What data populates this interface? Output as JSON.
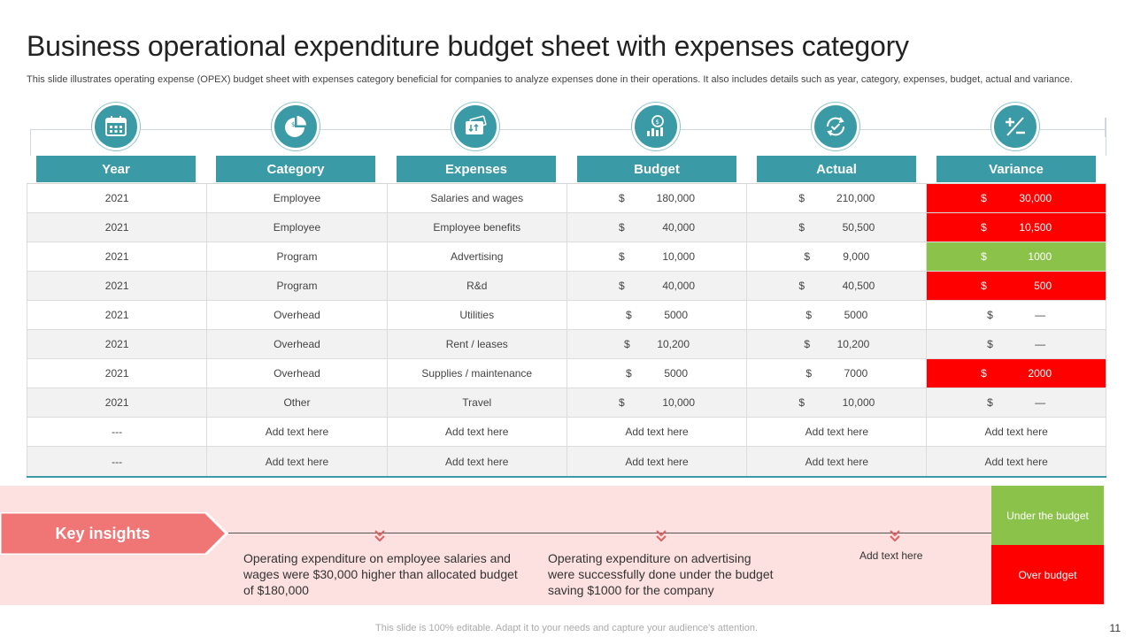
{
  "title": "Business operational expenditure budget sheet with expenses category",
  "subtitle": "This slide illustrates operating expense (OPEX) budget sheet with expenses category beneficial for companies to analyze expenses done in their operations. It also includes details such as year, category, expenses, budget, actual and variance.",
  "colors": {
    "teal": "#3a9aa5",
    "over_budget": "#ff0000",
    "under_budget": "#8bc34a",
    "insight_band": "#fde0e0",
    "key_insights": "#f07575"
  },
  "columns": [
    {
      "label": "Year",
      "icon": "calendar-icon"
    },
    {
      "label": "Category",
      "icon": "pie-chart-icon"
    },
    {
      "label": "Expenses",
      "icon": "money-transfer-icon"
    },
    {
      "label": "Budget",
      "icon": "budget-growth-icon"
    },
    {
      "label": "Actual",
      "icon": "cycle-check-icon"
    },
    {
      "label": "Variance",
      "icon": "plus-minus-icon"
    }
  ],
  "rows": [
    {
      "year": "2021",
      "category": "Employee",
      "expense": "Salaries and wages",
      "budget_cur": "$",
      "budget": "180,000",
      "actual_cur": "$",
      "actual": "210,000",
      "var_cur": "$",
      "variance": "30,000",
      "status": "over"
    },
    {
      "year": "2021",
      "category": "Employee",
      "expense": "Employee benefits",
      "budget_cur": "$",
      "budget": "40,000",
      "actual_cur": "$",
      "actual": "50,500",
      "var_cur": "$",
      "variance": "10,500",
      "status": "over"
    },
    {
      "year": "2021",
      "category": "Program",
      "expense": "Advertising",
      "budget_cur": "$",
      "budget": "10,000",
      "actual_cur": "$",
      "actual": "9,000",
      "var_cur": "$",
      "variance": "1000",
      "status": "under"
    },
    {
      "year": "2021",
      "category": "Program",
      "expense": "R&d",
      "budget_cur": "$",
      "budget": "40,000",
      "actual_cur": "$",
      "actual": "40,500",
      "var_cur": "$",
      "variance": "500",
      "status": "over"
    },
    {
      "year": "2021",
      "category": "Overhead",
      "expense": "Utilities",
      "budget_cur": "$",
      "budget": "5000",
      "actual_cur": "$",
      "actual": "5000",
      "var_cur": "$",
      "variance": "—",
      "status": "none"
    },
    {
      "year": "2021",
      "category": "Overhead",
      "expense": "Rent / leases",
      "budget_cur": "$",
      "budget": "10,200",
      "actual_cur": "$",
      "actual": "10,200",
      "var_cur": "$",
      "variance": "—",
      "status": "none"
    },
    {
      "year": "2021",
      "category": "Overhead",
      "expense": "Supplies / maintenance",
      "budget_cur": "$",
      "budget": "5000",
      "actual_cur": "$",
      "actual": "7000",
      "var_cur": "$",
      "variance": "2000",
      "status": "over"
    },
    {
      "year": "2021",
      "category": "Other",
      "expense": "Travel",
      "budget_cur": "$",
      "budget": "10,000",
      "actual_cur": "$",
      "actual": "10,000",
      "var_cur": "$",
      "variance": "—",
      "status": "none"
    }
  ],
  "placeholder_rows": [
    {
      "year": "---",
      "text": "Add text here"
    },
    {
      "year": "---",
      "text": "Add text here"
    }
  ],
  "insights": {
    "label": "Key insights",
    "items": [
      "Operating expenditure on employee salaries and wages were $30,000 higher than allocated budget of $180,000",
      "Operating expenditure on advertising were successfully done under the budget saving $1000 for the company",
      "Add text here"
    ]
  },
  "legend": {
    "under": "Under the budget",
    "over": "Over budget"
  },
  "footer": "This slide is 100% editable. Adapt it to your needs and capture your audience's attention.",
  "page_number": "11"
}
